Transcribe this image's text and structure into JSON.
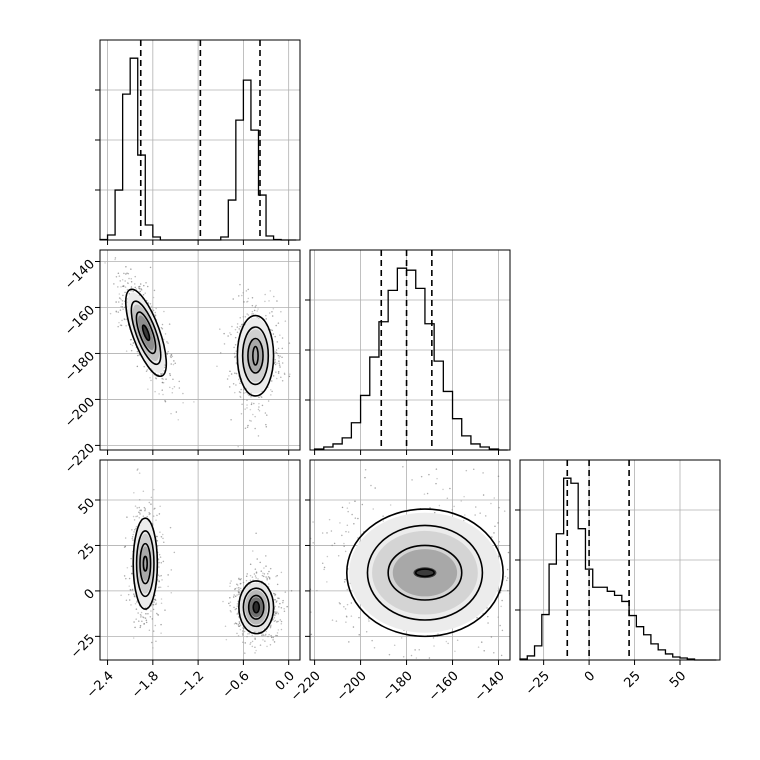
{
  "chart_data": {
    "type": "corner",
    "grid": true,
    "params": [
      {
        "key": "p1",
        "range": [
          -2.5,
          0.15
        ],
        "ticks": [
          -2.4,
          -1.8,
          -1.2,
          -0.6,
          0.0
        ],
        "tick_labels": [
          "−2.4",
          "−1.8",
          "−1.2",
          "−0.6",
          "0.0"
        ],
        "quantiles": [
          -1.96,
          -1.17,
          -0.38
        ],
        "histogram": {
          "edges": [
            -2.5,
            -2.4,
            -2.3,
            -2.2,
            -2.1,
            -2.0,
            -1.9,
            -1.8,
            -1.7,
            -1.6,
            -1.5,
            -1.4,
            -1.3,
            -1.2,
            -1.1,
            -1.0,
            -0.9,
            -0.8,
            -0.7,
            -0.6,
            -0.5,
            -0.4,
            -0.3,
            -0.2,
            -0.1,
            0.0,
            0.1
          ],
          "counts": [
            0.5,
            5,
            50,
            146,
            182,
            85,
            15,
            3,
            0,
            0,
            0,
            0,
            0,
            0,
            0,
            0,
            3,
            40,
            120,
            160,
            110,
            45,
            4,
            0.5,
            0,
            0
          ]
        }
      },
      {
        "key": "p2",
        "range": [
          -222,
          -135
        ],
        "ticks": [
          -220,
          -200,
          -180,
          -160,
          -140
        ],
        "tick_labels": [
          "−220",
          "−200",
          "−180",
          "−160",
          "−140"
        ],
        "quantiles": [
          -191,
          -180,
          -169
        ],
        "histogram": {
          "edges": [
            -220,
            -216,
            -212,
            -208,
            -204,
            -200,
            -196,
            -192,
            -188,
            -184,
            -180,
            -176,
            -172,
            -168,
            -164,
            -160,
            -156,
            -152,
            -148,
            -144,
            -140,
            -136
          ],
          "counts": [
            1,
            3,
            6,
            12,
            27,
            54,
            92,
            127,
            158,
            180,
            178,
            160,
            125,
            88,
            58,
            31,
            14,
            6,
            3,
            1,
            0
          ]
        }
      },
      {
        "key": "p3",
        "range": [
          -38,
          72
        ],
        "ticks": [
          -25,
          0,
          25,
          50
        ],
        "tick_labels": [
          "−25",
          "0",
          "25",
          "50"
        ],
        "quantiles": [
          -12,
          0,
          22
        ],
        "histogram": {
          "edges": [
            -38,
            -34,
            -30,
            -26,
            -22,
            -18,
            -14,
            -10,
            -6,
            -2,
            2,
            6,
            10,
            14,
            18,
            22,
            26,
            30,
            34,
            38,
            42,
            46,
            50,
            54,
            58,
            62,
            66,
            70
          ],
          "counts": [
            1,
            4,
            14,
            45,
            95,
            125,
            180,
            175,
            130,
            90,
            72,
            72,
            68,
            64,
            58,
            44,
            33,
            25,
            16,
            10,
            6,
            3,
            2,
            1,
            0,
            0,
            0
          ]
        }
      }
    ],
    "pairs": [
      {
        "x": "p1",
        "y": "p2",
        "clusters": [
          {
            "center": [
              -1.89,
              -171
            ],
            "contours": [
              {
                "rx": 0.18,
                "ry": 20,
                "rot": 20
              },
              {
                "rx": 0.13,
                "ry": 14.5,
                "rot": 20
              },
              {
                "rx": 0.085,
                "ry": 9.5,
                "rot": 20
              },
              {
                "rx": 0.03,
                "ry": 3.5,
                "rot": 20
              }
            ],
            "density": [
              {
                "rx": 0.17,
                "ry": 18.5,
                "rot": 20,
                "shade": "#ececec"
              },
              {
                "rx": 0.12,
                "ry": 13,
                "rot": 20,
                "shade": "#c2c2c2"
              },
              {
                "rx": 0.07,
                "ry": 8,
                "rot": 20,
                "shade": "#8c8c8c"
              },
              {
                "rx": 0.03,
                "ry": 3.5,
                "rot": 20,
                "shade": "#3a3a3a"
              }
            ]
          },
          {
            "center": [
              -0.44,
              -181
            ],
            "contours": [
              {
                "rx": 0.24,
                "ry": 17.5,
                "rot": 0
              },
              {
                "rx": 0.17,
                "ry": 12.5,
                "rot": 0
              },
              {
                "rx": 0.1,
                "ry": 7.5,
                "rot": 0
              },
              {
                "rx": 0.035,
                "ry": 4,
                "rot": 0
              }
            ],
            "density": [
              {
                "rx": 0.23,
                "ry": 16.5,
                "rot": 0,
                "shade": "#ececec"
              },
              {
                "rx": 0.16,
                "ry": 11.5,
                "rot": 0,
                "shade": "#d0d0d0"
              },
              {
                "rx": 0.09,
                "ry": 7,
                "rot": 0,
                "shade": "#a8a8a8"
              }
            ]
          }
        ]
      },
      {
        "x": "p1",
        "y": "p3",
        "clusters": [
          {
            "center": [
              -1.9,
              15
            ],
            "contours": [
              {
                "rx": 0.16,
                "ry": 25,
                "rot": 0
              },
              {
                "rx": 0.115,
                "ry": 18,
                "rot": 0
              },
              {
                "rx": 0.07,
                "ry": 11,
                "rot": 0
              },
              {
                "rx": 0.025,
                "ry": 4,
                "rot": 0
              }
            ],
            "density": [
              {
                "rx": 0.15,
                "ry": 24,
                "rot": 0,
                "shade": "#ececec"
              },
              {
                "rx": 0.1,
                "ry": 16.5,
                "rot": 0,
                "shade": "#cfcfcf"
              },
              {
                "rx": 0.06,
                "ry": 9.5,
                "rot": 0,
                "shade": "#a8a8a8"
              }
            ]
          },
          {
            "center": [
              -0.43,
              -9
            ],
            "contours": [
              {
                "rx": 0.23,
                "ry": 14.5,
                "rot": 0
              },
              {
                "rx": 0.17,
                "ry": 10.5,
                "rot": 0
              },
              {
                "rx": 0.1,
                "ry": 6.5,
                "rot": 0
              },
              {
                "rx": 0.04,
                "ry": 3,
                "rot": 0
              }
            ],
            "density": [
              {
                "rx": 0.22,
                "ry": 13.5,
                "rot": 0,
                "shade": "#e6e6e6"
              },
              {
                "rx": 0.15,
                "ry": 9.5,
                "rot": 0,
                "shade": "#b8b8b8"
              },
              {
                "rx": 0.09,
                "ry": 5.5,
                "rot": 0,
                "shade": "#6e6e6e"
              },
              {
                "rx": 0.04,
                "ry": 2.5,
                "rot": 0,
                "shade": "#2c2c2c"
              }
            ]
          }
        ]
      },
      {
        "x": "p2",
        "y": "p3",
        "clusters": [
          {
            "center": [
              -172,
              10
            ],
            "contours": [
              {
                "rx": 34,
                "ry": 35,
                "rot": 0
              },
              {
                "rx": 25,
                "ry": 26,
                "rot": 0
              },
              {
                "rx": 16,
                "ry": 15,
                "rot": 0
              },
              {
                "rx": 4,
                "ry": 2,
                "rot": 0
              }
            ],
            "density": [
              {
                "rx": 33,
                "ry": 33,
                "rot": 0,
                "shade": "#ececec"
              },
              {
                "rx": 23,
                "ry": 23,
                "rot": 0,
                "shade": "#d4d4d4"
              },
              {
                "rx": 14,
                "ry": 13,
                "rot": 0,
                "shade": "#a8a8a8"
              },
              {
                "rx": 5,
                "ry": 3,
                "rot": 0,
                "shade": "#3c3c3c"
              }
            ]
          }
        ]
      }
    ]
  }
}
